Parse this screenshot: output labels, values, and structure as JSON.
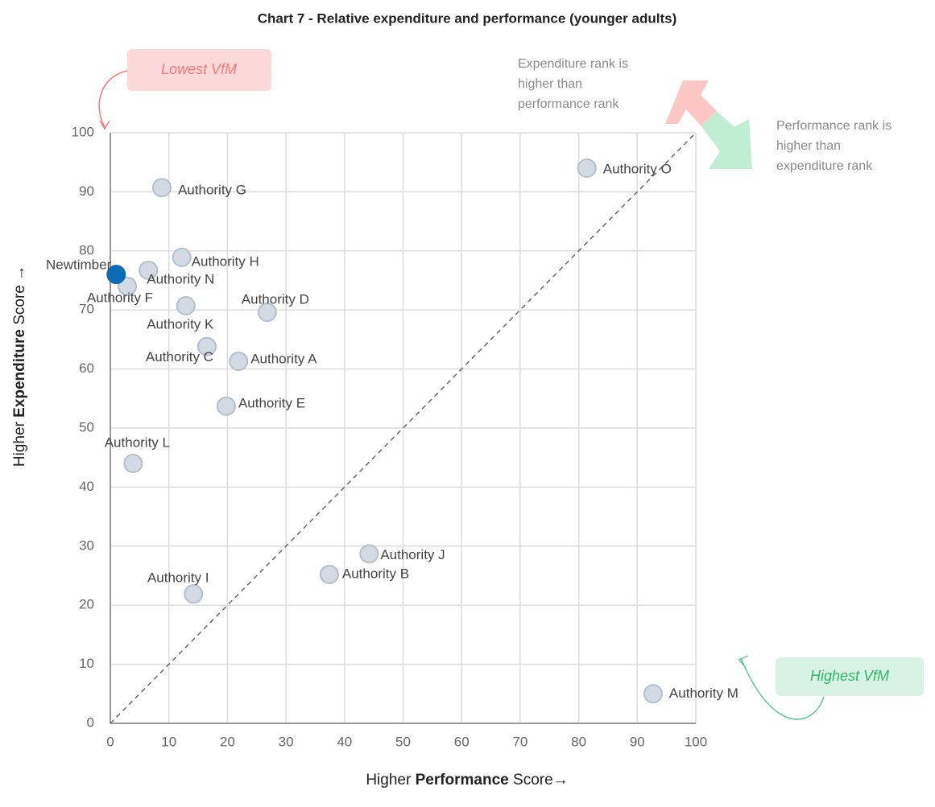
{
  "chart_data": {
    "type": "scatter",
    "title": "Chart 7 - Relative expenditure and performance (younger adults)",
    "x_label": [
      "Higher ",
      "Performance",
      " Score→"
    ],
    "y_label": [
      "Higher ",
      "Expenditure",
      " Score →"
    ],
    "labels": [
      "Newtimber",
      "Authority G",
      "Authority O",
      "Authority H",
      "Authority N",
      "Authority F",
      "Authority K",
      "Authority D",
      "Authority C",
      "Authority A",
      "Authority E",
      "Authority L",
      "Authority J",
      "Authority B",
      "Authority I",
      "Authority M"
    ],
    "x": [
      1,
      8.8,
      81.4,
      12.2,
      6.5,
      2.9,
      12.9,
      26.8,
      16.5,
      21.9,
      19.8,
      3.9,
      44.2,
      37.4,
      14.2,
      92.7
    ],
    "y": [
      76,
      90.7,
      94,
      78.9,
      76.7,
      74,
      70.7,
      69.6,
      63.8,
      61.3,
      53.7,
      44,
      28.7,
      25.2,
      21.9,
      5
    ],
    "colors": [
      "#0b6cb5",
      "#d3dae3",
      "#d3dae3",
      "#d3dae3",
      "#d3dae3",
      "#d3dae3",
      "#d3dae3",
      "#d3dae3",
      "#d3dae3",
      "#d3dae3",
      "#d3dae3",
      "#d3dae3",
      "#d3dae3",
      "#d3dae3",
      "#d3dae3",
      "#d3dae3"
    ],
    "xlim": [
      0,
      100
    ],
    "ylim": [
      0,
      100
    ],
    "xticks": [
      0,
      10,
      20,
      30,
      40,
      50,
      60,
      70,
      80,
      90,
      100
    ],
    "yticks": [
      0,
      10,
      20,
      30,
      40,
      50,
      60,
      70,
      80,
      90,
      100
    ],
    "grid": true,
    "annotations": {
      "lowest": "Lowest VfM",
      "highest": "Highest VfM",
      "expenditure_note": [
        "Expenditure rank is",
        "higher than",
        "performance rank"
      ],
      "performance_note": [
        "Performance rank is",
        "higher than",
        "expenditure rank"
      ]
    }
  }
}
